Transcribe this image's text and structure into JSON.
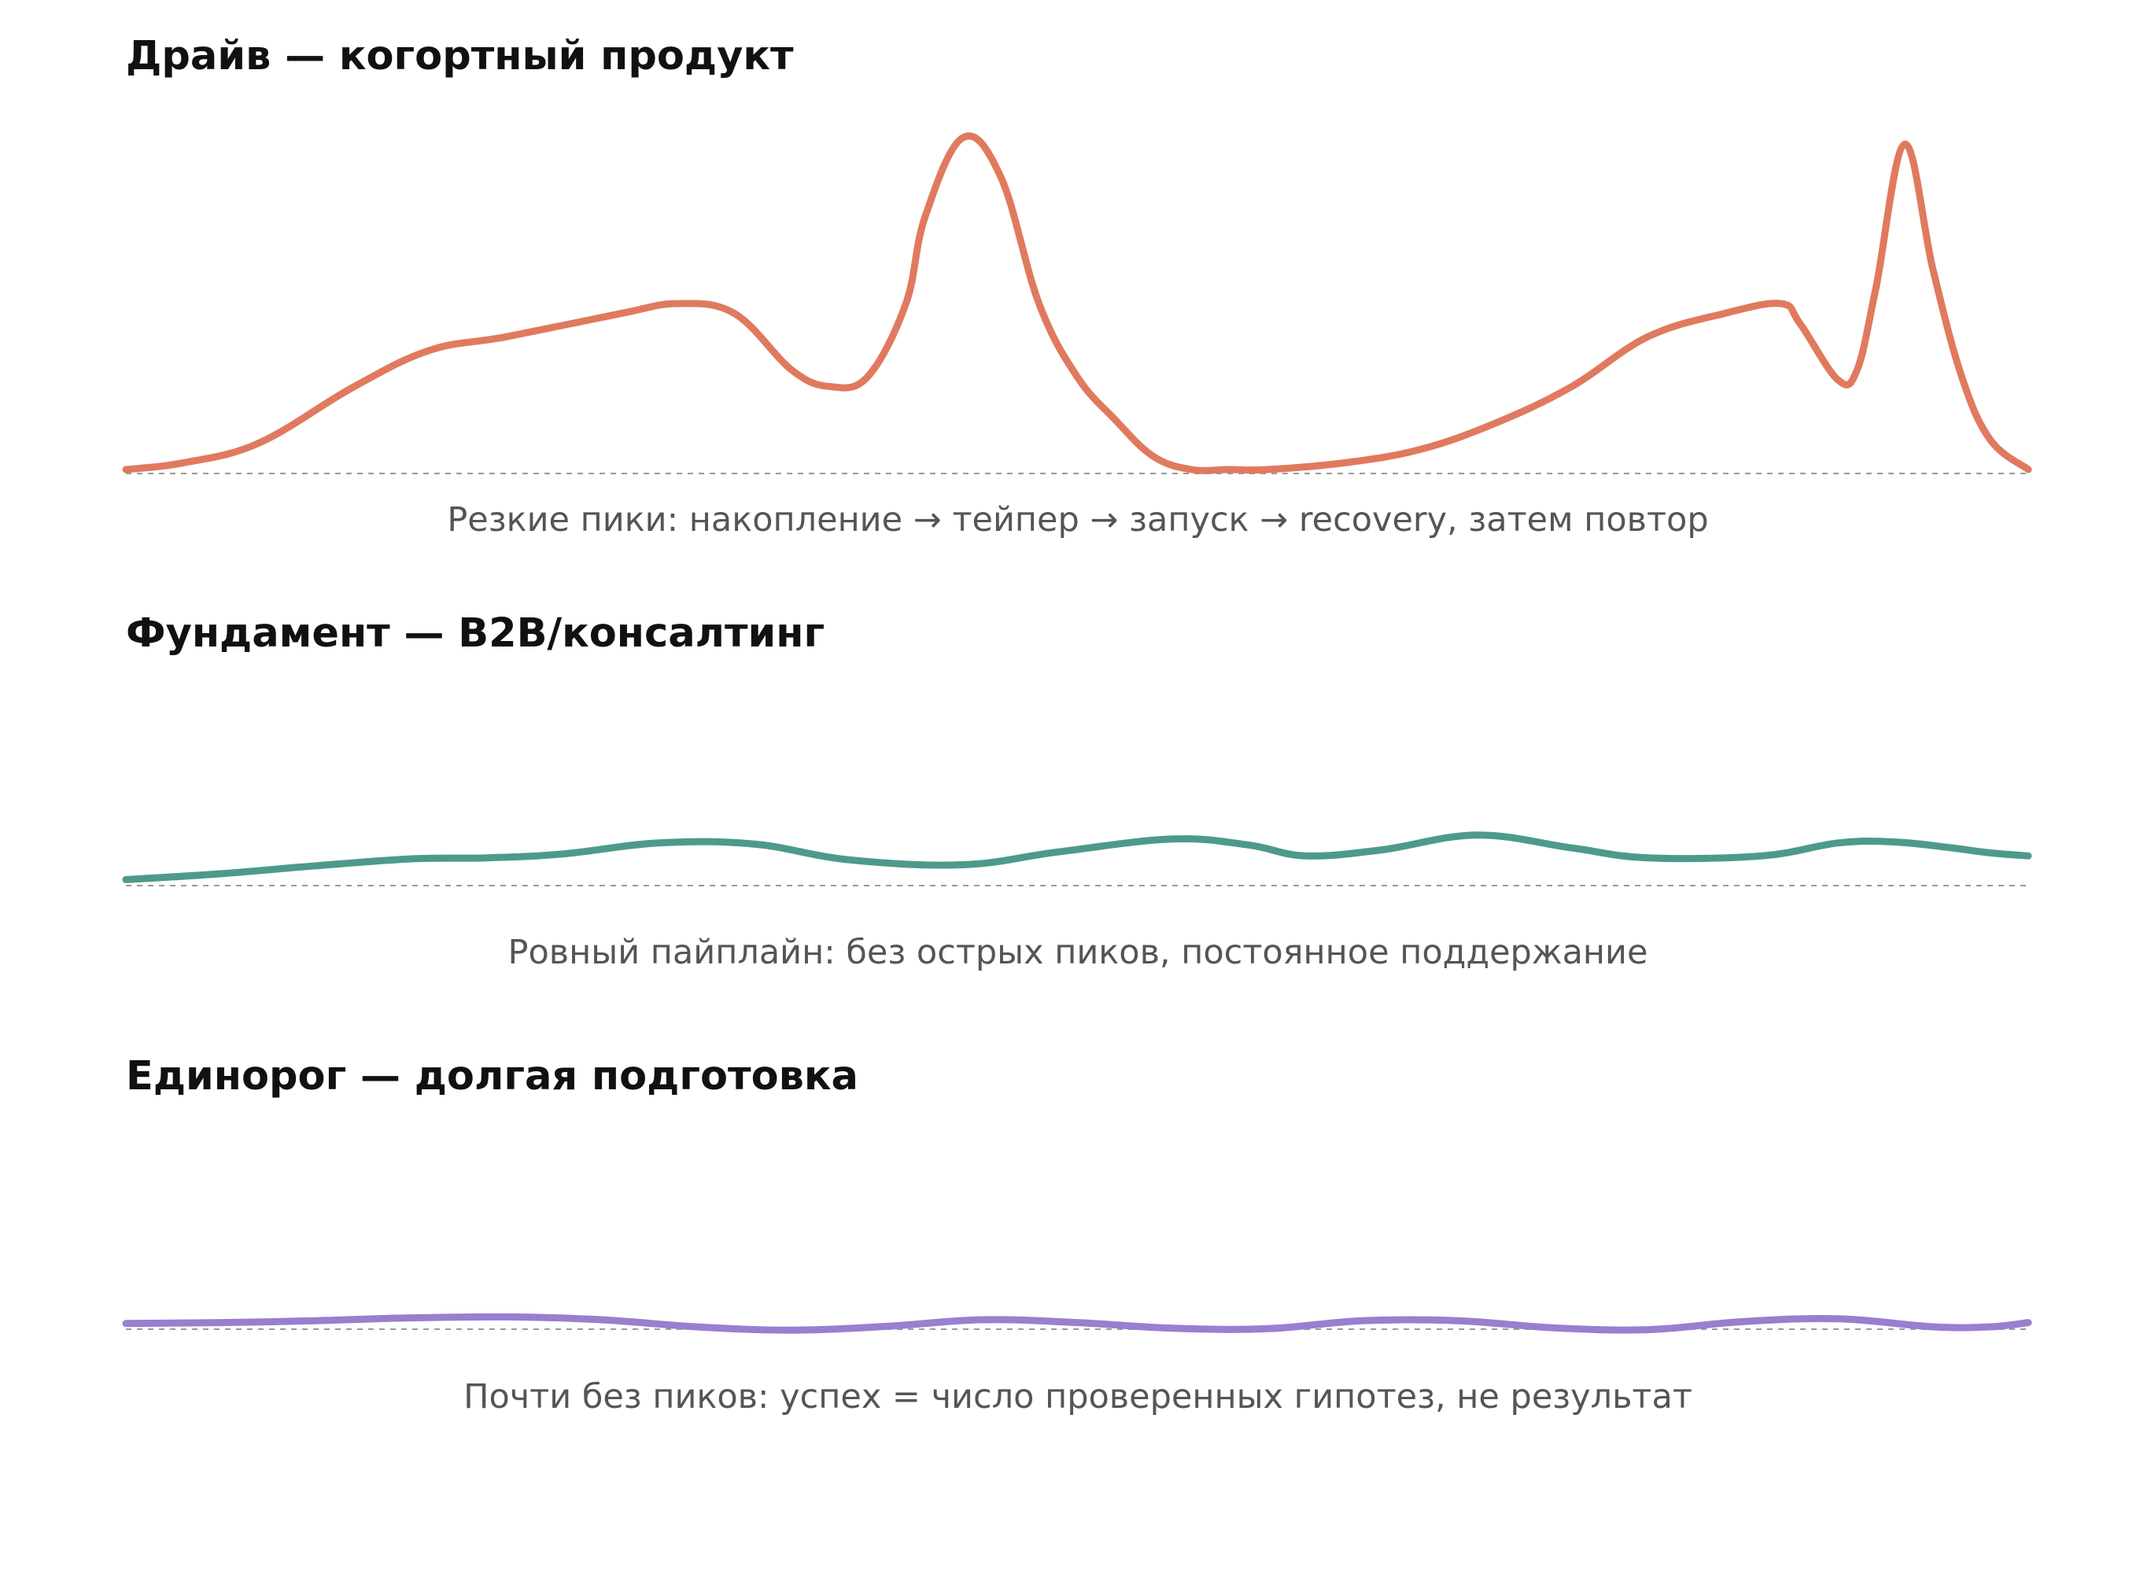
{
  "chart_data": [
    {
      "type": "line",
      "title": "Драйв — когортный продукт",
      "caption": "Резкие пики: накопление → тейпер → запуск → recovery, затем повтор",
      "color": "#E07A5F",
      "baseline": "dashed",
      "grid": false,
      "axes_visible": false,
      "ylim": [
        0,
        1
      ],
      "x": [
        0,
        0.03,
        0.07,
        0.12,
        0.16,
        0.2,
        0.26,
        0.29,
        0.32,
        0.35,
        0.37,
        0.39,
        0.41,
        0.42,
        0.44,
        0.46,
        0.48,
        0.5,
        0.52,
        0.54,
        0.56,
        0.58,
        0.6,
        0.64,
        0.68,
        0.72,
        0.76,
        0.8,
        0.84,
        0.87,
        0.88,
        0.9,
        0.91,
        0.92,
        0.935,
        0.95,
        0.965,
        0.98,
        1.0
      ],
      "y": [
        0.0,
        0.02,
        0.08,
        0.25,
        0.36,
        0.4,
        0.47,
        0.5,
        0.47,
        0.3,
        0.25,
        0.28,
        0.5,
        0.76,
        1.0,
        0.88,
        0.5,
        0.28,
        0.15,
        0.04,
        0.0,
        0.0,
        0.0,
        0.02,
        0.06,
        0.14,
        0.25,
        0.4,
        0.47,
        0.5,
        0.44,
        0.27,
        0.3,
        0.55,
        0.98,
        0.6,
        0.28,
        0.09,
        0.0
      ]
    },
    {
      "type": "line",
      "title": "Фундамент — B2B/консалтинг",
      "caption": "Ровный пайплайн: без острых пиков, постоянное поддержание",
      "color": "#4E9A8A",
      "baseline": "dashed",
      "grid": false,
      "axes_visible": false,
      "ylim": [
        0,
        1
      ],
      "x": [
        0,
        0.05,
        0.1,
        0.15,
        0.19,
        0.23,
        0.28,
        0.33,
        0.38,
        0.44,
        0.49,
        0.55,
        0.59,
        0.62,
        0.66,
        0.71,
        0.76,
        0.8,
        0.86,
        0.9,
        0.93,
        0.96,
        0.98,
        1.0
      ],
      "y": [
        0.06,
        0.12,
        0.2,
        0.27,
        0.28,
        0.32,
        0.43,
        0.42,
        0.26,
        0.21,
        0.34,
        0.47,
        0.41,
        0.3,
        0.36,
        0.51,
        0.38,
        0.28,
        0.3,
        0.43,
        0.44,
        0.38,
        0.33,
        0.3
      ]
    },
    {
      "type": "line",
      "title": "Единорог — долгая подготовка",
      "caption": "Почти без пиков: успех = число проверенных гипотез, не результат",
      "color": "#9A7ED0",
      "baseline": "dashed",
      "grid": false,
      "axes_visible": false,
      "ylim": [
        0,
        1
      ],
      "x": [
        0,
        0.05,
        0.1,
        0.15,
        0.2,
        0.25,
        0.3,
        0.35,
        0.4,
        0.45,
        0.5,
        0.55,
        0.6,
        0.65,
        0.7,
        0.75,
        0.8,
        0.85,
        0.9,
        0.95,
        0.98,
        1.0
      ],
      "y": [
        0.12,
        0.14,
        0.18,
        0.24,
        0.26,
        0.2,
        0.05,
        -0.02,
        0.06,
        0.2,
        0.14,
        0.02,
        0.01,
        0.18,
        0.18,
        0.03,
        -0.01,
        0.16,
        0.22,
        0.05,
        0.05,
        0.14
      ]
    }
  ]
}
